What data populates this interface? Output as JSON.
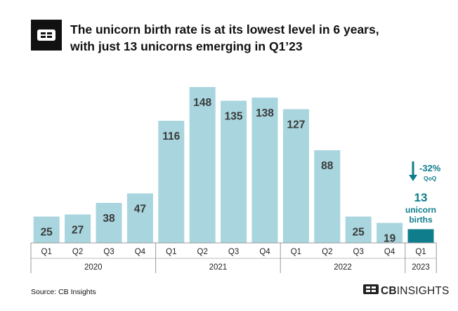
{
  "header": {
    "logo_icon": "cb-insights-logo-icon",
    "title_line1": "The unicorn birth rate is at its lowest level in 6 years,",
    "title_line2": "with just 13 unicorns emerging in Q1’23"
  },
  "chart_data": {
    "type": "bar",
    "categories": [
      "Q1",
      "Q2",
      "Q3",
      "Q4",
      "Q1",
      "Q2",
      "Q3",
      "Q4",
      "Q1",
      "Q2",
      "Q3",
      "Q4",
      "Q1"
    ],
    "groups": [
      {
        "label": "2020",
        "count": 4
      },
      {
        "label": "2021",
        "count": 4
      },
      {
        "label": "2022",
        "count": 4
      },
      {
        "label": "2023",
        "count": 1
      }
    ],
    "values": [
      25,
      27,
      38,
      47,
      116,
      148,
      135,
      138,
      127,
      88,
      25,
      19,
      13
    ],
    "bar_color": "#a9d5de",
    "highlight_color": "#0f7d8c",
    "highlight_index": 12,
    "ylim": [
      0,
      160
    ],
    "callout": {
      "change": "-32%",
      "change_label": "QoQ",
      "value": "13",
      "label_line1": "unicorn",
      "label_line2": "births"
    }
  },
  "footer": {
    "source": "Source: CB Insights",
    "brand_bold": "CB",
    "brand_rest": "INSIGHTS",
    "brand_icon": "cb-insights-logo-icon"
  }
}
